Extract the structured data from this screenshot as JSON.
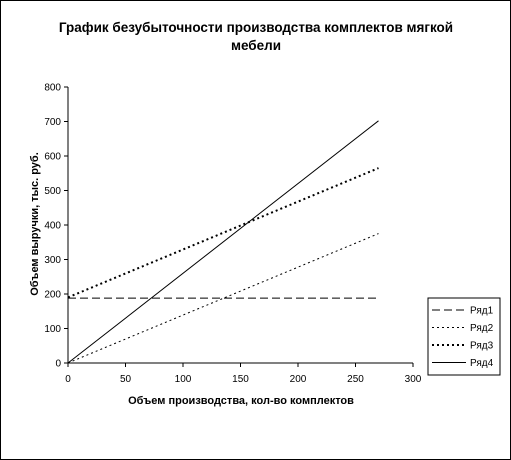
{
  "chart_data": {
    "type": "line",
    "title": "График безубыточности производства комплектов мягкой мебели",
    "title_lines": [
      "График безубыточности производства комплектов мягкой",
      "мебели"
    ],
    "xlabel": "Объем производства, кол-во комплектов",
    "ylabel": "Объем выручки, тыс. руб.",
    "xlim": [
      0,
      300
    ],
    "ylim": [
      0,
      800
    ],
    "xticks": [
      0,
      50,
      100,
      150,
      200,
      250,
      300
    ],
    "yticks": [
      0,
      100,
      200,
      300,
      400,
      500,
      600,
      700,
      800
    ],
    "grid": false,
    "legend_position": "right",
    "series": [
      {
        "name": "Ряд1",
        "dash": "dash",
        "x": [
          0,
          270
        ],
        "y": [
          188,
          188
        ]
      },
      {
        "name": "Ряд2",
        "dash": "dot",
        "x": [
          0,
          270
        ],
        "y": [
          0,
          375
        ]
      },
      {
        "name": "Ряд3",
        "dash": "dot-bold",
        "x": [
          0,
          270
        ],
        "y": [
          190,
          565
        ]
      },
      {
        "name": "Ряд4",
        "dash": "solid",
        "x": [
          0,
          270
        ],
        "y": [
          0,
          702
        ]
      }
    ]
  }
}
